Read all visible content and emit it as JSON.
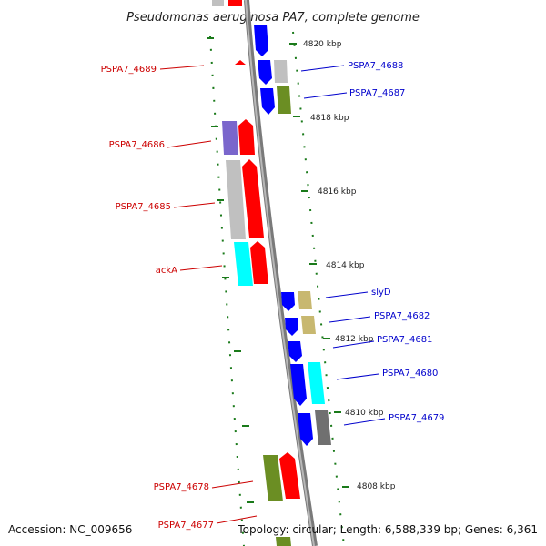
{
  "title": "Pseudomonas aeruginosa PA7, complete genome",
  "footer": {
    "accession": "Accession: NC_009656",
    "topology": "Topology: circular; Length: 6,588,339 bp; Genes: 6,361"
  },
  "colors": {
    "red_label": "#cc0000",
    "blue_label": "#0000cc",
    "tick": "#1a7a1a",
    "backbone": "#808080"
  },
  "kbp_labels": [
    "4820 kbp",
    "4818 kbp",
    "4816 kbp",
    "4814 kbp",
    "4812 kbp",
    "4810 kbp",
    "4808 kbp"
  ],
  "left_labels": [
    "PSPA7_4689",
    "PSPA7_4686",
    "PSPA7_4685",
    "ackA",
    "PSPA7_4678",
    "PSPA7_4677"
  ],
  "right_labels": [
    "PSPA7_4688",
    "PSPA7_4687",
    "slyD",
    "PSPA7_4682",
    "PSPA7_4681",
    "PSPA7_4680",
    "PSPA7_4679"
  ]
}
